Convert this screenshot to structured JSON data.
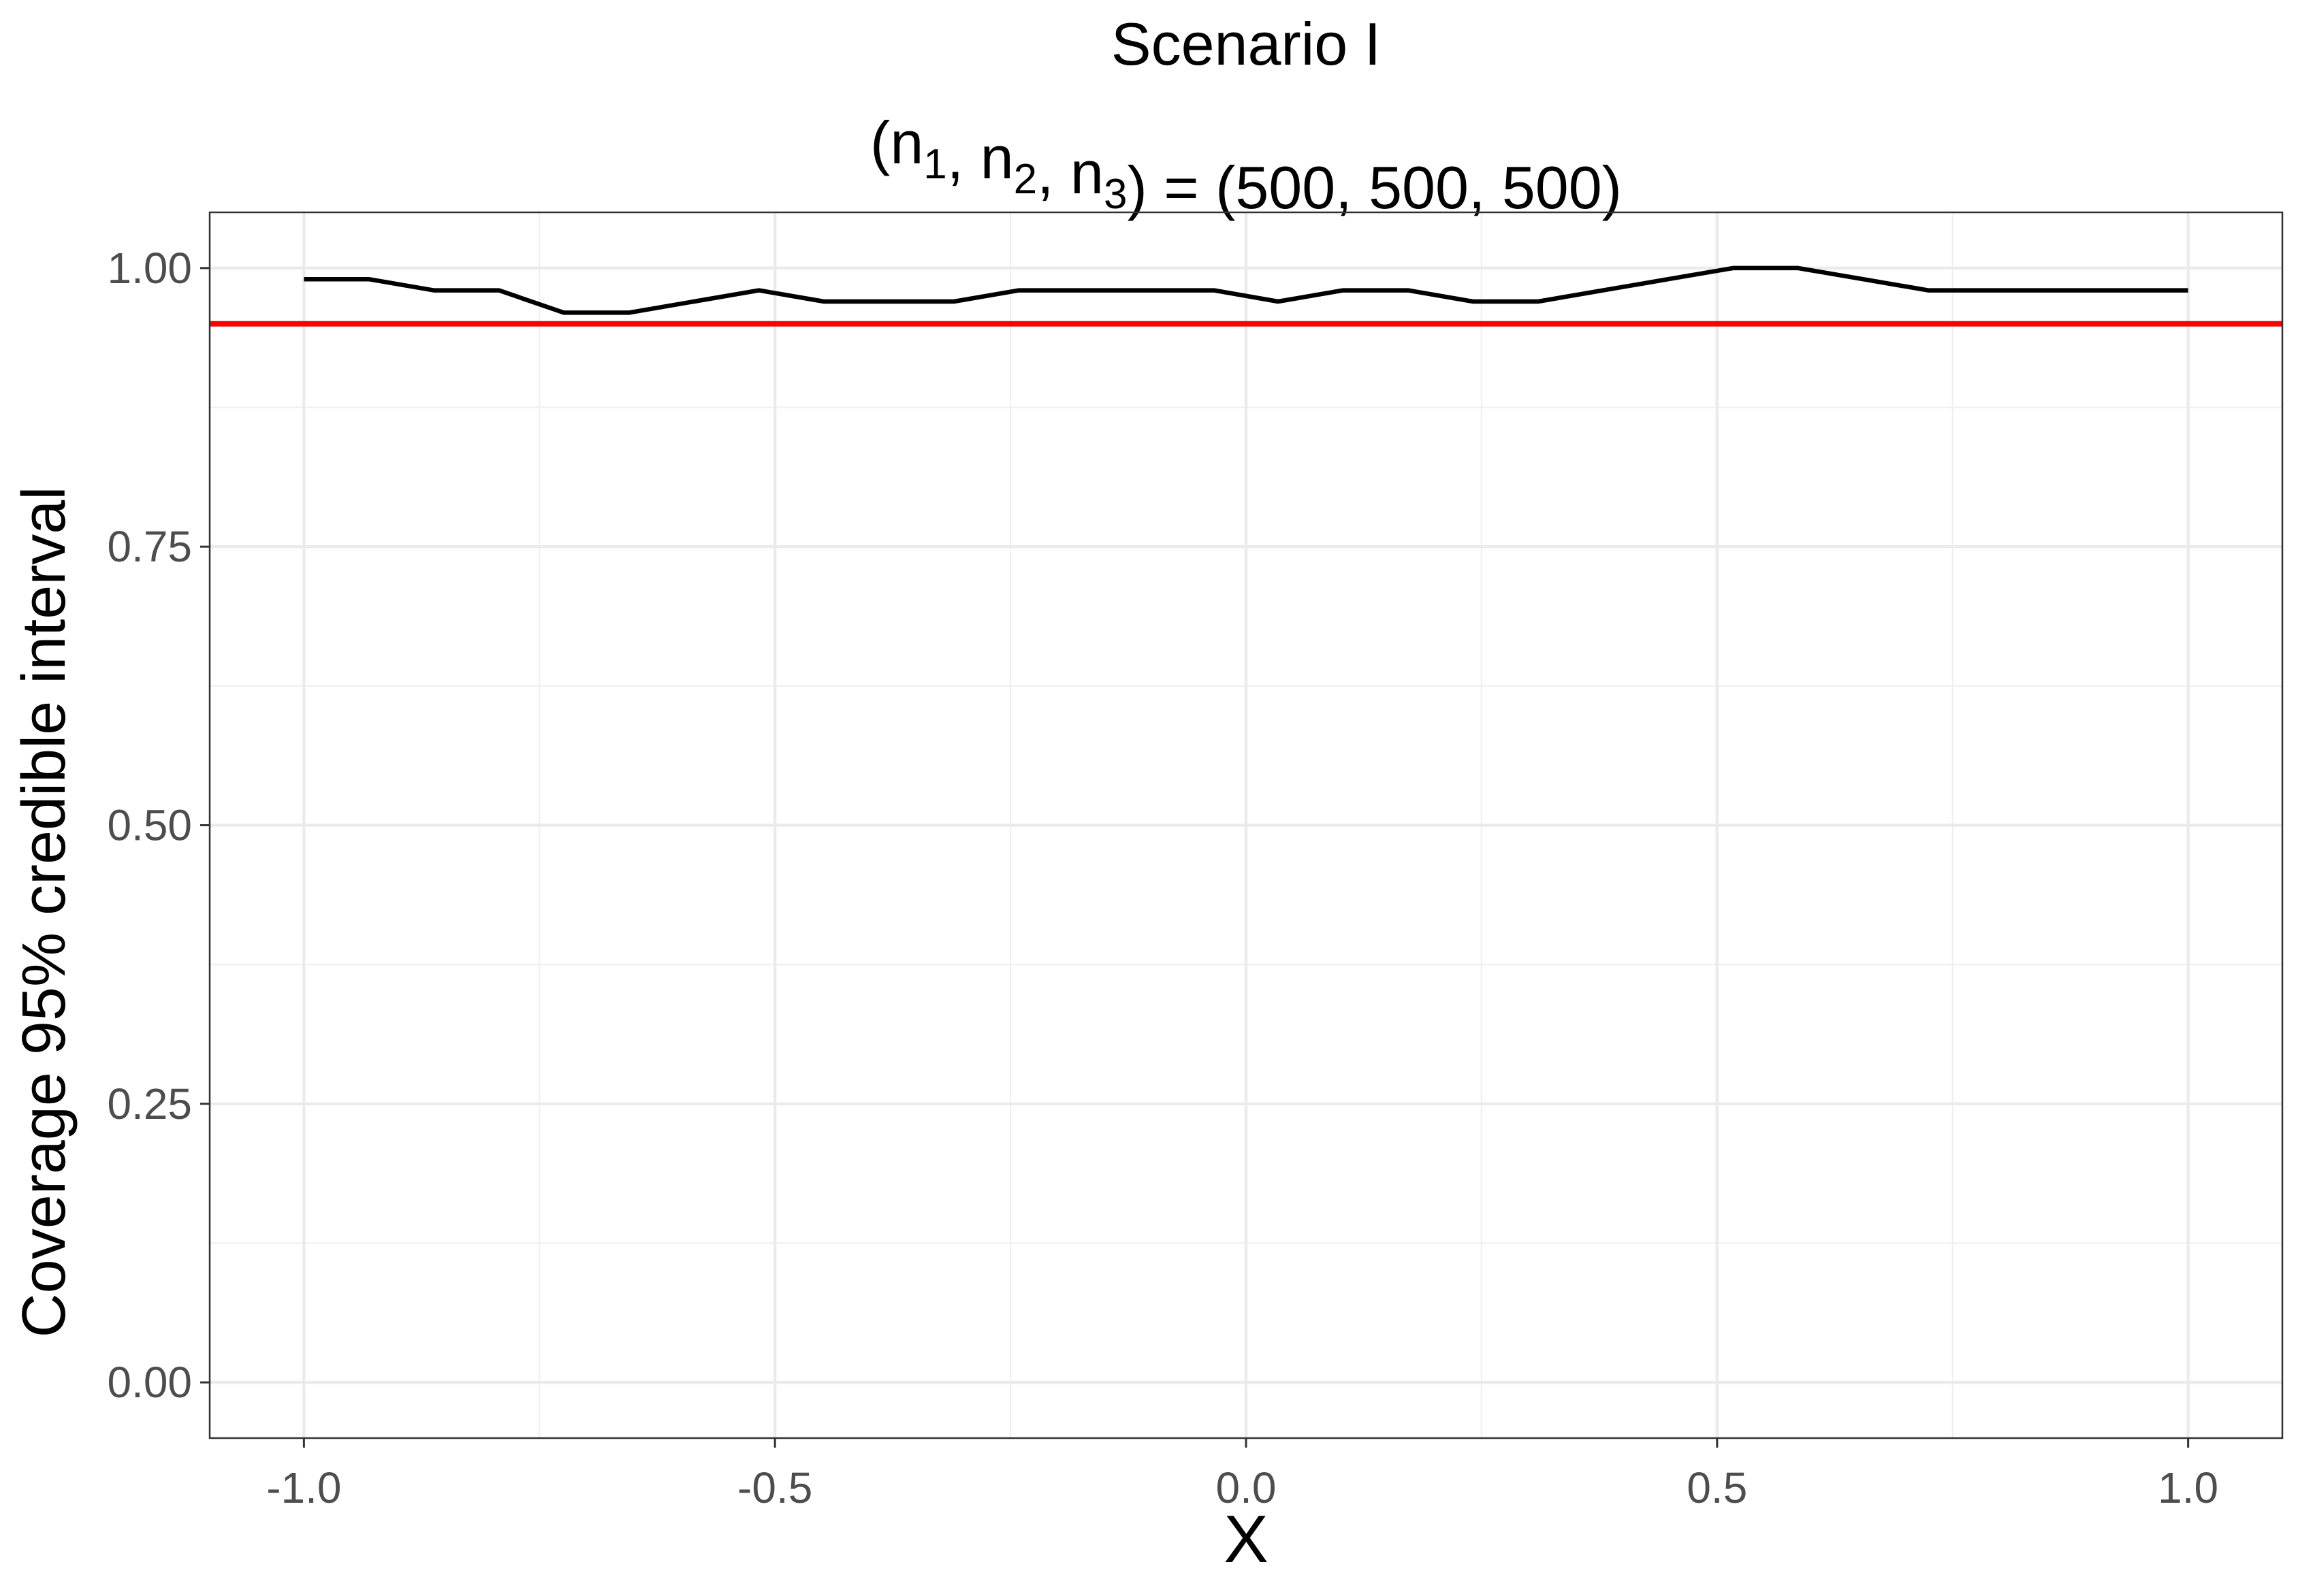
{
  "chart_data": {
    "type": "line",
    "title": "Scenario I",
    "subtitle": {
      "open": "(",
      "parts": [
        {
          "base": "n",
          "sub": "1"
        },
        {
          "base": "n",
          "sub": "2"
        },
        {
          "base": "n",
          "sub": "3"
        }
      ],
      "separator": ", ",
      "rest": ") = (500, 500, 500)"
    },
    "xlabel": "X",
    "ylabel": "Coverage 95% credible interval",
    "xlim": [
      -1.1,
      1.1
    ],
    "ylim": [
      -0.05,
      1.05
    ],
    "x_ticks": [
      -1.0,
      -0.5,
      0.0,
      0.5,
      1.0
    ],
    "x_tick_labels": [
      "-1.0",
      "-0.5",
      "0.0",
      "0.5",
      "1.0"
    ],
    "y_ticks": [
      0.0,
      0.25,
      0.5,
      0.75,
      1.0
    ],
    "y_tick_labels": [
      "0.00",
      "0.25",
      "0.50",
      "0.75",
      "1.00"
    ],
    "grid": true,
    "series": [
      {
        "color": "#000000",
        "x": [
          -1.0,
          -0.931,
          -0.862,
          -0.793,
          -0.724,
          -0.655,
          -0.586,
          -0.517,
          -0.448,
          -0.379,
          -0.31,
          -0.241,
          -0.172,
          -0.103,
          -0.034,
          0.034,
          0.103,
          0.172,
          0.241,
          0.31,
          0.379,
          0.448,
          0.517,
          0.586,
          0.655,
          0.724,
          0.793,
          0.862,
          0.931,
          1.0
        ],
        "y": [
          0.99,
          0.99,
          0.98,
          0.98,
          0.96,
          0.96,
          0.97,
          0.98,
          0.97,
          0.97,
          0.97,
          0.98,
          0.98,
          0.98,
          0.98,
          0.97,
          0.98,
          0.98,
          0.97,
          0.97,
          0.98,
          0.99,
          1.0,
          1.0,
          0.99,
          0.98,
          0.98,
          0.98,
          0.98,
          0.98
        ]
      }
    ],
    "reference_line": {
      "y": 0.95,
      "color": "#ff0000"
    }
  }
}
